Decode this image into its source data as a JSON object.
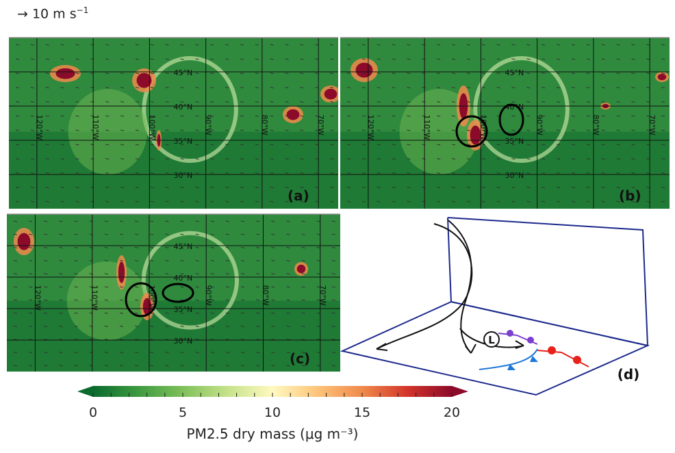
{
  "wind_scale": {
    "arrow_icon": "arrow-right-icon",
    "value": "10 m s",
    "exponent": "−1"
  },
  "panels": [
    {
      "id": "a",
      "label": "(a)",
      "circles": 0
    },
    {
      "id": "b",
      "label": "(b)",
      "circles": 2
    },
    {
      "id": "c",
      "label": "(c)",
      "circles": 2
    }
  ],
  "lat_labels": [
    "45°N",
    "40°N",
    "35°N",
    "30°N"
  ],
  "lon_labels": [
    "120°W",
    "110°W",
    "100°W",
    "90°W",
    "80°W",
    "70°W"
  ],
  "diagram": {
    "label": "(d)",
    "low_symbol": "L",
    "front_colors": {
      "occluded": "#7b3fd0",
      "cold": "#1f78d8",
      "warm": "#e8221b"
    },
    "frame_color": "#1c2a8c"
  },
  "colorbar": {
    "title": "PM2.5 dry mass (μg m⁻³)",
    "range": [
      0,
      20
    ],
    "extend": "both",
    "ticks": [
      "0",
      "5",
      "10",
      "15",
      "20"
    ],
    "colors": [
      "#0b6b2e",
      "#3d9a3f",
      "#7fc05a",
      "#c6e28a",
      "#fff9c0",
      "#fdc47a",
      "#f08a4b",
      "#d3352a",
      "#8c0a2a"
    ]
  }
}
